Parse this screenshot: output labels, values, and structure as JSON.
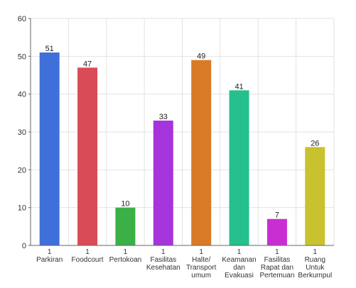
{
  "chart_data": {
    "type": "bar",
    "categories": [
      [
        "1",
        "Parkiran"
      ],
      [
        "1",
        "Foodcourt"
      ],
      [
        "1",
        "Pertokoan"
      ],
      [
        "1",
        "Fasilitas",
        "Kesehatan"
      ],
      [
        "1",
        "Halte/",
        "Transport",
        "umum"
      ],
      [
        "1",
        "Keamanan",
        "dan",
        "Evakuasi"
      ],
      [
        "1",
        "Fasilitas",
        "Rapat dan",
        "Pertemuan"
      ],
      [
        "1",
        "Ruang",
        "Untuk",
        "Berkumpul"
      ]
    ],
    "values": [
      51,
      47,
      10,
      33,
      49,
      41,
      7,
      26
    ],
    "colors": [
      "#3f6fd9",
      "#d94b57",
      "#3bb046",
      "#a534dc",
      "#d97a27",
      "#26bf8e",
      "#c92ed3",
      "#c8c22e"
    ],
    "ylim": [
      0,
      60
    ],
    "yticks": [
      0,
      10,
      20,
      30,
      40,
      50,
      60
    ],
    "grid": true,
    "title": "",
    "xlabel": "",
    "ylabel": ""
  }
}
